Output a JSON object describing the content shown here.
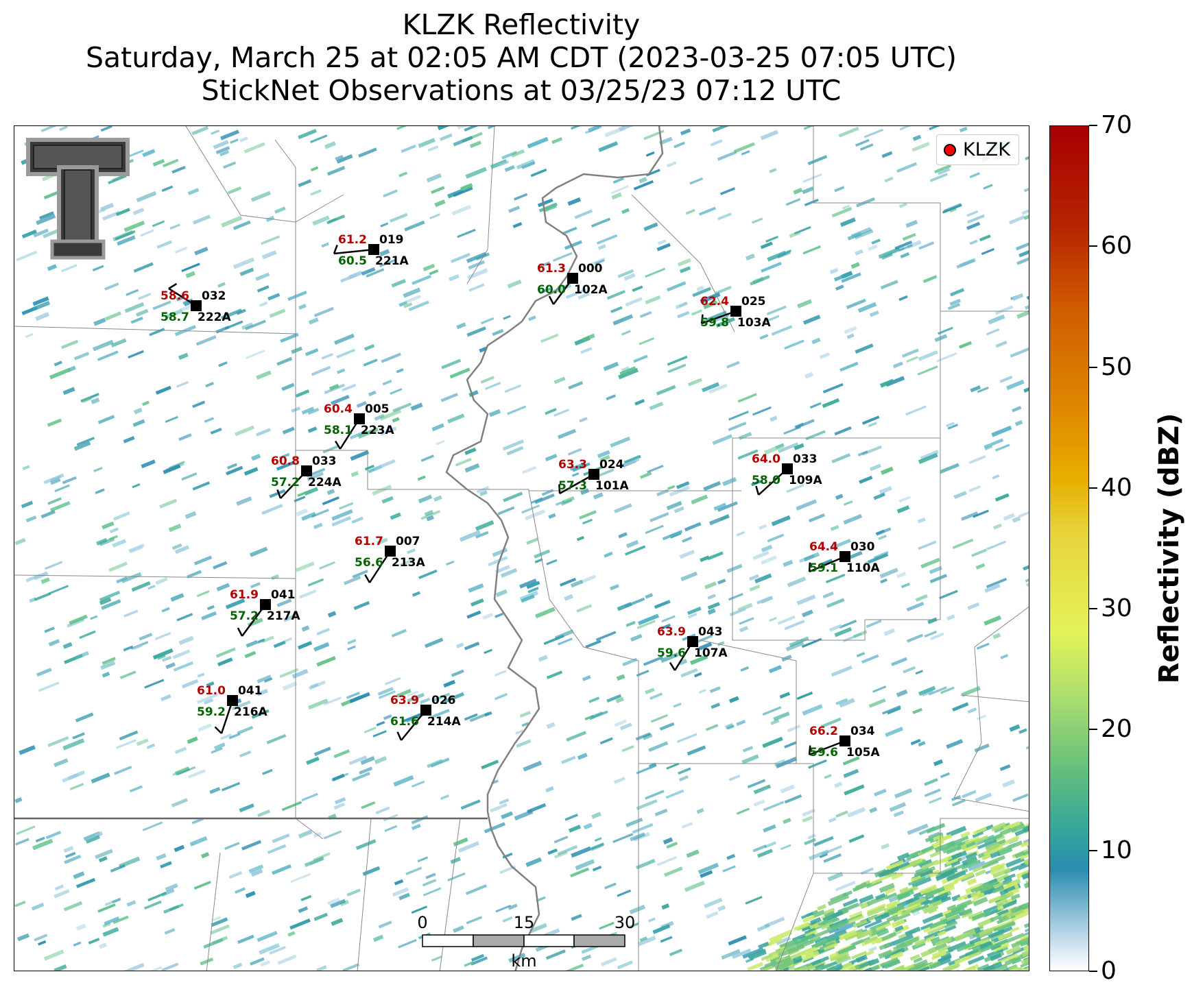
{
  "title": {
    "line1": "KLZK Reflectivity",
    "line2": "Saturday, March 25 at 02:05 AM CDT (2023-03-25 07:05 UTC)",
    "line3": "StickNet Observations at 03/25/23 07:12 UTC"
  },
  "legend": {
    "label": "KLZK",
    "marker_color": "#ff0000"
  },
  "colorbar": {
    "label": "Reflectivity (dBZ)",
    "ticks": [
      "0",
      "10",
      "20",
      "30",
      "40",
      "50",
      "60",
      "70"
    ],
    "min": 0,
    "max": 70
  },
  "scale_bar": {
    "ticks": [
      "0",
      "15",
      "30"
    ],
    "unit": "km"
  },
  "logo": {
    "name": "texas-tech-double-t-logo"
  },
  "colors": {
    "temperature": "#b30000",
    "dewpoint": "#006400",
    "station": "#000000"
  },
  "stations": [
    {
      "id": "221A",
      "temp": "61.2",
      "dew": "60.5",
      "pres": "019"
    },
    {
      "id": "222A",
      "temp": "58.6",
      "dew": "58.7",
      "pres": "032"
    },
    {
      "id": "102A",
      "temp": "61.3",
      "dew": "60.0",
      "pres": "000"
    },
    {
      "id": "103A",
      "temp": "62.4",
      "dew": "59.8",
      "pres": "025"
    },
    {
      "id": "223A",
      "temp": "60.4",
      "dew": "58.1",
      "pres": "005"
    },
    {
      "id": "224A",
      "temp": "60.8",
      "dew": "57.2",
      "pres": "033"
    },
    {
      "id": "101A",
      "temp": "63.3",
      "dew": "57.3",
      "pres": "024"
    },
    {
      "id": "109A",
      "temp": "64.0",
      "dew": "58.0",
      "pres": "033"
    },
    {
      "id": "213A",
      "temp": "61.7",
      "dew": "56.6",
      "pres": "007"
    },
    {
      "id": "110A",
      "temp": "64.4",
      "dew": "59.1",
      "pres": "030"
    },
    {
      "id": "217A",
      "temp": "61.9",
      "dew": "57.2",
      "pres": "041"
    },
    {
      "id": "107A",
      "temp": "63.9",
      "dew": "59.6",
      "pres": "043"
    },
    {
      "id": "216A",
      "temp": "61.0",
      "dew": "59.2",
      "pres": "041"
    },
    {
      "id": "214A",
      "temp": "63.9",
      "dew": "61.6",
      "pres": "026"
    },
    {
      "id": "105A",
      "temp": "66.2",
      "dew": "59.6",
      "pres": "034"
    }
  ]
}
